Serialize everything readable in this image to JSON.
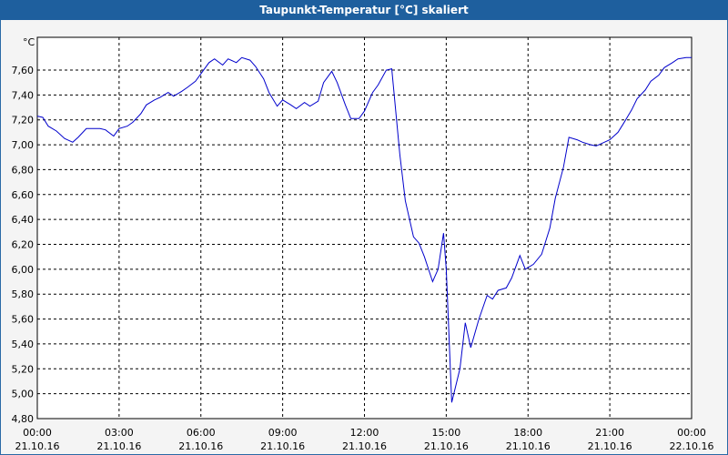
{
  "window": {
    "title": "Taupunkt-Temperatur [°C] skaliert"
  },
  "colors": {
    "titlebar": "#1e5f9e",
    "line": "#0000cc",
    "grid": "#000000",
    "background": "#f4f4f4"
  },
  "chart_data": {
    "type": "line",
    "title": "Taupunkt-Temperatur [°C] skaliert",
    "ylabel": "°C",
    "ylim": [
      4.8,
      7.8
    ],
    "y_ticks": [
      "7,60",
      "7,40",
      "7,20",
      "7,00",
      "6,80",
      "6,60",
      "6,40",
      "6,20",
      "6,00",
      "5,80",
      "5,60",
      "5,40",
      "5,20",
      "5,00",
      "4,80"
    ],
    "x_ticks": [
      {
        "time": "00:00",
        "date": "21.10.16"
      },
      {
        "time": "03:00",
        "date": "21.10.16"
      },
      {
        "time": "06:00",
        "date": "21.10.16"
      },
      {
        "time": "09:00",
        "date": "21.10.16"
      },
      {
        "time": "12:00",
        "date": "21.10.16"
      },
      {
        "time": "15:00",
        "date": "21.10.16"
      },
      {
        "time": "18:00",
        "date": "21.10.16"
      },
      {
        "time": "21:00",
        "date": "21.10.16"
      },
      {
        "time": "00:00",
        "date": "22.10.16"
      }
    ],
    "grid": true,
    "series": [
      {
        "x_unit": "hours",
        "x": [
          0,
          0.2,
          0.4,
          0.7,
          1,
          1.3,
          1.5,
          1.8,
          2,
          2.3,
          2.5,
          2.8,
          3,
          3.3,
          3.5,
          3.8,
          4,
          4.3,
          4.5,
          4.8,
          5,
          5.3,
          5.5,
          5.8,
          6,
          6.3,
          6.5,
          6.8,
          7,
          7.3,
          7.5,
          7.8,
          8,
          8.3,
          8.5,
          8.8,
          9,
          9.3,
          9.5,
          9.8,
          10,
          10.3,
          10.5,
          10.8,
          11,
          11.3,
          11.5,
          11.8,
          12,
          12.3,
          12.5,
          12.8,
          13,
          13.3,
          13.5,
          13.8,
          14,
          14.2,
          14.5,
          14.7,
          14.9,
          15,
          15.2,
          15.5,
          15.7,
          15.9,
          16.2,
          16.5,
          16.7,
          16.9,
          17.2,
          17.4,
          17.7,
          17.9,
          18.2,
          18.5,
          18.8,
          19,
          19.3,
          19.5,
          19.8,
          20,
          20.3,
          20.5,
          20.8,
          21,
          21.3,
          21.5,
          21.8,
          22,
          22.3,
          22.5,
          22.8,
          23,
          23.3,
          23.5,
          23.8,
          24
        ],
        "y": [
          7.23,
          7.22,
          7.15,
          7.11,
          7.05,
          7.02,
          7.06,
          7.13,
          7.13,
          7.13,
          7.12,
          7.07,
          7.13,
          7.15,
          7.18,
          7.25,
          7.32,
          7.36,
          7.38,
          7.42,
          7.39,
          7.43,
          7.46,
          7.51,
          7.57,
          7.66,
          7.69,
          7.64,
          7.69,
          7.66,
          7.7,
          7.68,
          7.63,
          7.53,
          7.42,
          7.31,
          7.36,
          7.32,
          7.29,
          7.34,
          7.31,
          7.35,
          7.5,
          7.59,
          7.5,
          7.32,
          7.21,
          7.21,
          7.27,
          7.42,
          7.48,
          7.6,
          7.61,
          6.92,
          6.55,
          6.26,
          6.21,
          6.1,
          5.9,
          6.0,
          6.29,
          6.0,
          4.93,
          5.2,
          5.57,
          5.37,
          5.6,
          5.79,
          5.76,
          5.83,
          5.85,
          5.93,
          6.11,
          6.0,
          6.04,
          6.12,
          6.33,
          6.57,
          6.82,
          7.06,
          7.04,
          7.02,
          7.0,
          6.99,
          7.02,
          7.04,
          7.1,
          7.17,
          7.28,
          7.37,
          7.44,
          7.51,
          7.56,
          7.62,
          7.66,
          7.69,
          7.7,
          7.7
        ]
      }
    ]
  }
}
